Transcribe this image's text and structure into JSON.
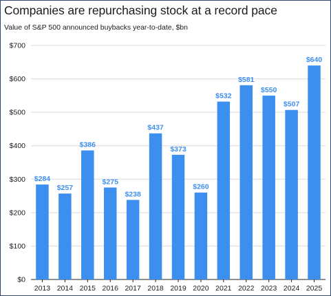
{
  "chart_data": {
    "type": "bar",
    "title": "Companies are repurchasing stock at a record pace",
    "subtitle": "Value of S&P 500 announced buybacks year-to-date, $bn",
    "xlabel": "",
    "ylabel": "",
    "categories": [
      "2013",
      "2014",
      "2015",
      "2016",
      "2017",
      "2018",
      "2019",
      "2020",
      "2021",
      "2022",
      "2023",
      "2024",
      "2025"
    ],
    "values": [
      284,
      257,
      386,
      275,
      238,
      437,
      373,
      260,
      532,
      581,
      550,
      507,
      640
    ],
    "data_labels": [
      "$284",
      "$257",
      "$386",
      "$275",
      "$238",
      "$437",
      "$373",
      "$260",
      "$532",
      "$581",
      "$550",
      "$507",
      "$640"
    ],
    "ylim": [
      0,
      700
    ],
    "yticks": [
      0,
      100,
      200,
      300,
      400,
      500,
      600,
      700
    ],
    "ytick_labels": [
      "$0",
      "$100",
      "$200",
      "$300",
      "$400",
      "$500",
      "$600",
      "$700"
    ],
    "grid": "horizontal",
    "legend": "none",
    "bar_color": "#3d8fef",
    "label_color": "#3d8fef"
  }
}
